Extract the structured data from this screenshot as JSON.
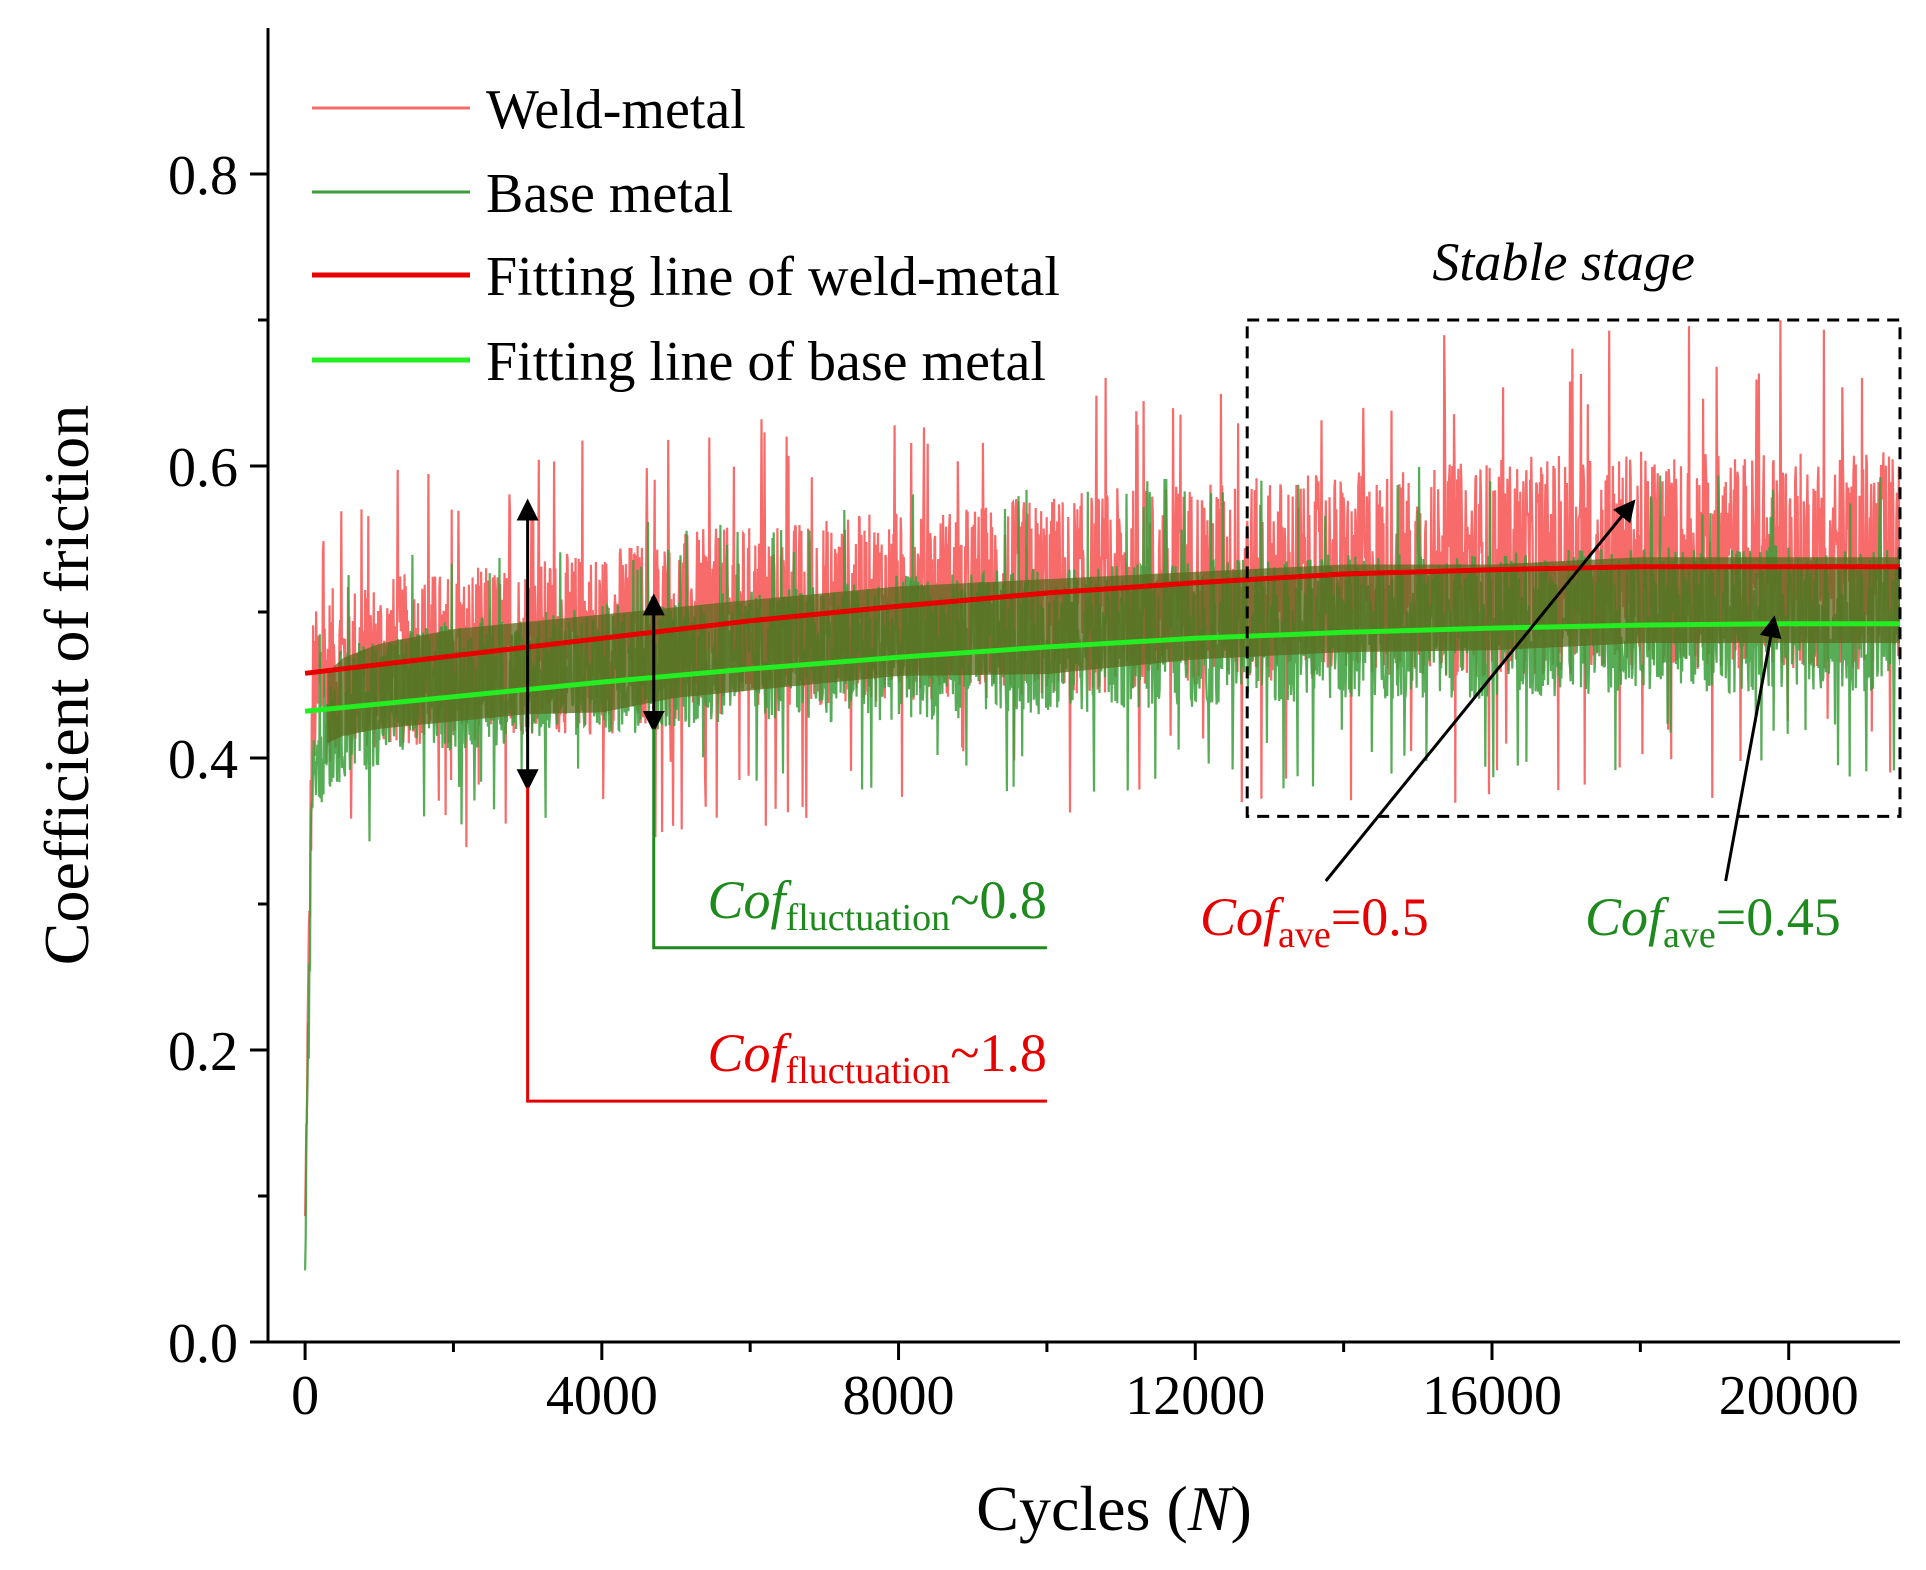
{
  "chart_data": {
    "type": "line",
    "title": "",
    "xlabel": {
      "prefix": "Cycles (",
      "var": "N",
      "suffix": ")"
    },
    "ylabel": "Coefficient of friction",
    "xlim": [
      -500,
      21500
    ],
    "ylim": [
      0.0,
      0.9
    ],
    "x_ticks": [
      0,
      4000,
      8000,
      12000,
      16000,
      20000
    ],
    "x_tick_labels": [
      "0",
      "4000",
      "8000",
      "12000",
      "16000",
      "20000"
    ],
    "x_minor_ticks": [
      2000,
      6000,
      10000,
      14000,
      18000
    ],
    "y_ticks": [
      0.0,
      0.2,
      0.4,
      0.6,
      0.8
    ],
    "y_tick_labels": [
      "0.0",
      "0.2",
      "0.4",
      "0.6",
      "0.8"
    ],
    "y_minor_ticks": [
      0.1,
      0.3,
      0.5,
      0.7
    ],
    "legend_position": "top-left",
    "series": [
      {
        "name": "Weld-metal",
        "kind": "noisy",
        "color": "#f76b6b",
        "x": [
          0,
          100,
          300,
          500,
          1000,
          2000,
          3000,
          4000,
          5000,
          6000,
          8000,
          10000,
          12000,
          14000,
          16000,
          18000,
          20000,
          21500
        ],
        "mean": [
          0.08,
          0.44,
          0.455,
          0.46,
          0.465,
          0.47,
          0.475,
          0.48,
          0.49,
          0.495,
          0.505,
          0.51,
          0.52,
          0.525,
          0.53,
          0.535,
          0.535,
          0.535
        ],
        "band": [
          0.02,
          0.06,
          0.06,
          0.06,
          0.06,
          0.06,
          0.06,
          0.065,
          0.065,
          0.065,
          0.065,
          0.07,
          0.07,
          0.07,
          0.075,
          0.075,
          0.075,
          0.075
        ]
      },
      {
        "name": "Base metal",
        "kind": "noisy",
        "color": "#3a9e3a",
        "x": [
          0,
          100,
          300,
          500,
          1000,
          2000,
          3000,
          4000,
          5000,
          6000,
          8000,
          10000,
          12000,
          14000,
          16000,
          18000,
          20000,
          21500
        ],
        "mean": [
          0.05,
          0.4,
          0.42,
          0.43,
          0.44,
          0.45,
          0.455,
          0.46,
          0.465,
          0.47,
          0.475,
          0.48,
          0.485,
          0.49,
          0.49,
          0.495,
          0.495,
          0.495
        ],
        "band": [
          0.02,
          0.04,
          0.045,
          0.045,
          0.045,
          0.045,
          0.045,
          0.045,
          0.045,
          0.045,
          0.05,
          0.05,
          0.05,
          0.05,
          0.05,
          0.05,
          0.05,
          0.05
        ]
      },
      {
        "name": "Fitting line of weld-metal",
        "kind": "fit",
        "color": "#e60000",
        "x": [
          0,
          2000,
          4000,
          6000,
          8000,
          10000,
          12000,
          14000,
          16000,
          18000,
          20000,
          21500
        ],
        "y": [
          0.458,
          0.47,
          0.482,
          0.494,
          0.504,
          0.513,
          0.52,
          0.526,
          0.529,
          0.531,
          0.531,
          0.531
        ]
      },
      {
        "name": "Fitting line of base metal",
        "kind": "fit",
        "color": "#22ee22",
        "x": [
          0,
          2000,
          4000,
          6000,
          8000,
          10000,
          12000,
          14000,
          16000,
          18000,
          20000,
          21500
        ],
        "y": [
          0.432,
          0.442,
          0.452,
          0.461,
          0.469,
          0.476,
          0.482,
          0.486,
          0.489,
          0.491,
          0.492,
          0.492
        ]
      }
    ],
    "annotations": {
      "stable_stage": {
        "label": "Stable stage",
        "x_range": [
          12700,
          21500
        ],
        "y_range": [
          0.36,
          0.7
        ]
      },
      "weld_fluctuation": {
        "italic": "Cof",
        "sub": "fluctuation",
        "value": "~1.8",
        "color": "#e60000",
        "arrow_x": 3000,
        "arrow_y": [
          0.38,
          0.575
        ],
        "bracket_y": 0.165,
        "bracket_x_end": 10000
      },
      "base_fluctuation": {
        "italic": "Cof",
        "sub": "fluctuation",
        "value": "~0.8",
        "color": "#1e8a1e",
        "arrow_x": 4700,
        "arrow_y": [
          0.42,
          0.51
        ],
        "bracket_y": 0.27,
        "bracket_x_end": 10000
      },
      "weld_average": {
        "italic": "Cof",
        "sub": "ave",
        "value": "=0.5",
        "color": "#e60000",
        "arrow_to": [
          17900,
          0.575
        ]
      },
      "base_average": {
        "italic": "Cof",
        "sub": "ave",
        "value": "=0.45",
        "color": "#1e8a1e",
        "arrow_to": [
          19800,
          0.495
        ]
      }
    }
  }
}
